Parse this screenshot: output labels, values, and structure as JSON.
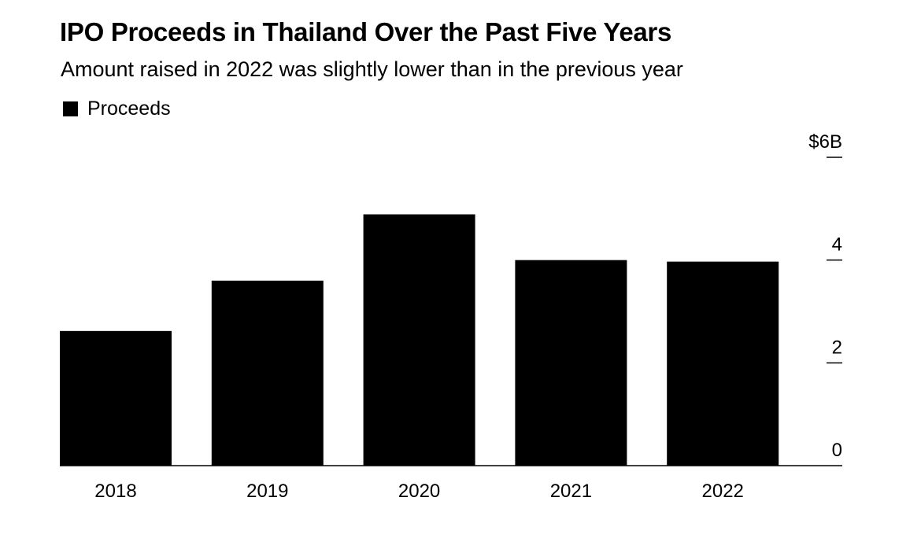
{
  "header": {
    "title": "IPO Proceeds in Thailand Over the Past Five Years",
    "subtitle": "Amount raised in 2022 was slightly lower than in the previous year"
  },
  "legend": {
    "label": "Proceeds",
    "color": "#000000"
  },
  "chart_data": {
    "type": "bar",
    "title": "IPO Proceeds in Thailand Over the Past Five Years",
    "subtitle": "Amount raised in 2022 was slightly lower than in the previous year",
    "categories": [
      "2018",
      "2019",
      "2020",
      "2021",
      "2022"
    ],
    "series": [
      {
        "name": "Proceeds",
        "color": "#000000",
        "values": [
          2.62,
          3.6,
          4.89,
          4.0,
          3.97
        ]
      }
    ],
    "ylim": [
      0,
      6
    ],
    "yticks": [
      0,
      2,
      4,
      6
    ],
    "ytick_labels": [
      "0",
      "2",
      "4",
      "$6B"
    ],
    "y_axis_position": "right",
    "grid": false,
    "legend_position": "top-left"
  }
}
